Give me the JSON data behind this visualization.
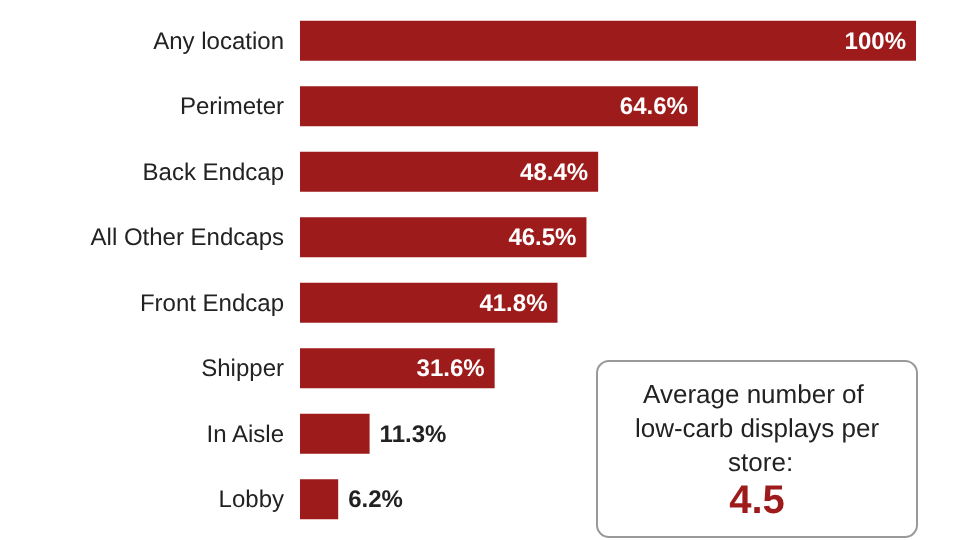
{
  "chart_data": {
    "type": "bar",
    "orientation": "horizontal",
    "categories": [
      "Any location",
      "Perimeter",
      "Back Endcap",
      "All Other Endcaps",
      "Front Endcap",
      "Shipper",
      "In Aisle",
      "Lobby"
    ],
    "values": [
      100,
      64.6,
      48.4,
      46.5,
      41.8,
      31.6,
      11.3,
      6.2
    ],
    "value_labels": [
      "100%",
      "64.6%",
      "48.4%",
      "46.5%",
      "41.8%",
      "31.6%",
      "11.3%",
      "6.2%"
    ],
    "color": "#9e1b1b",
    "annotations": [
      "Average number of low-carb displays per store:",
      "4.5"
    ]
  }
}
